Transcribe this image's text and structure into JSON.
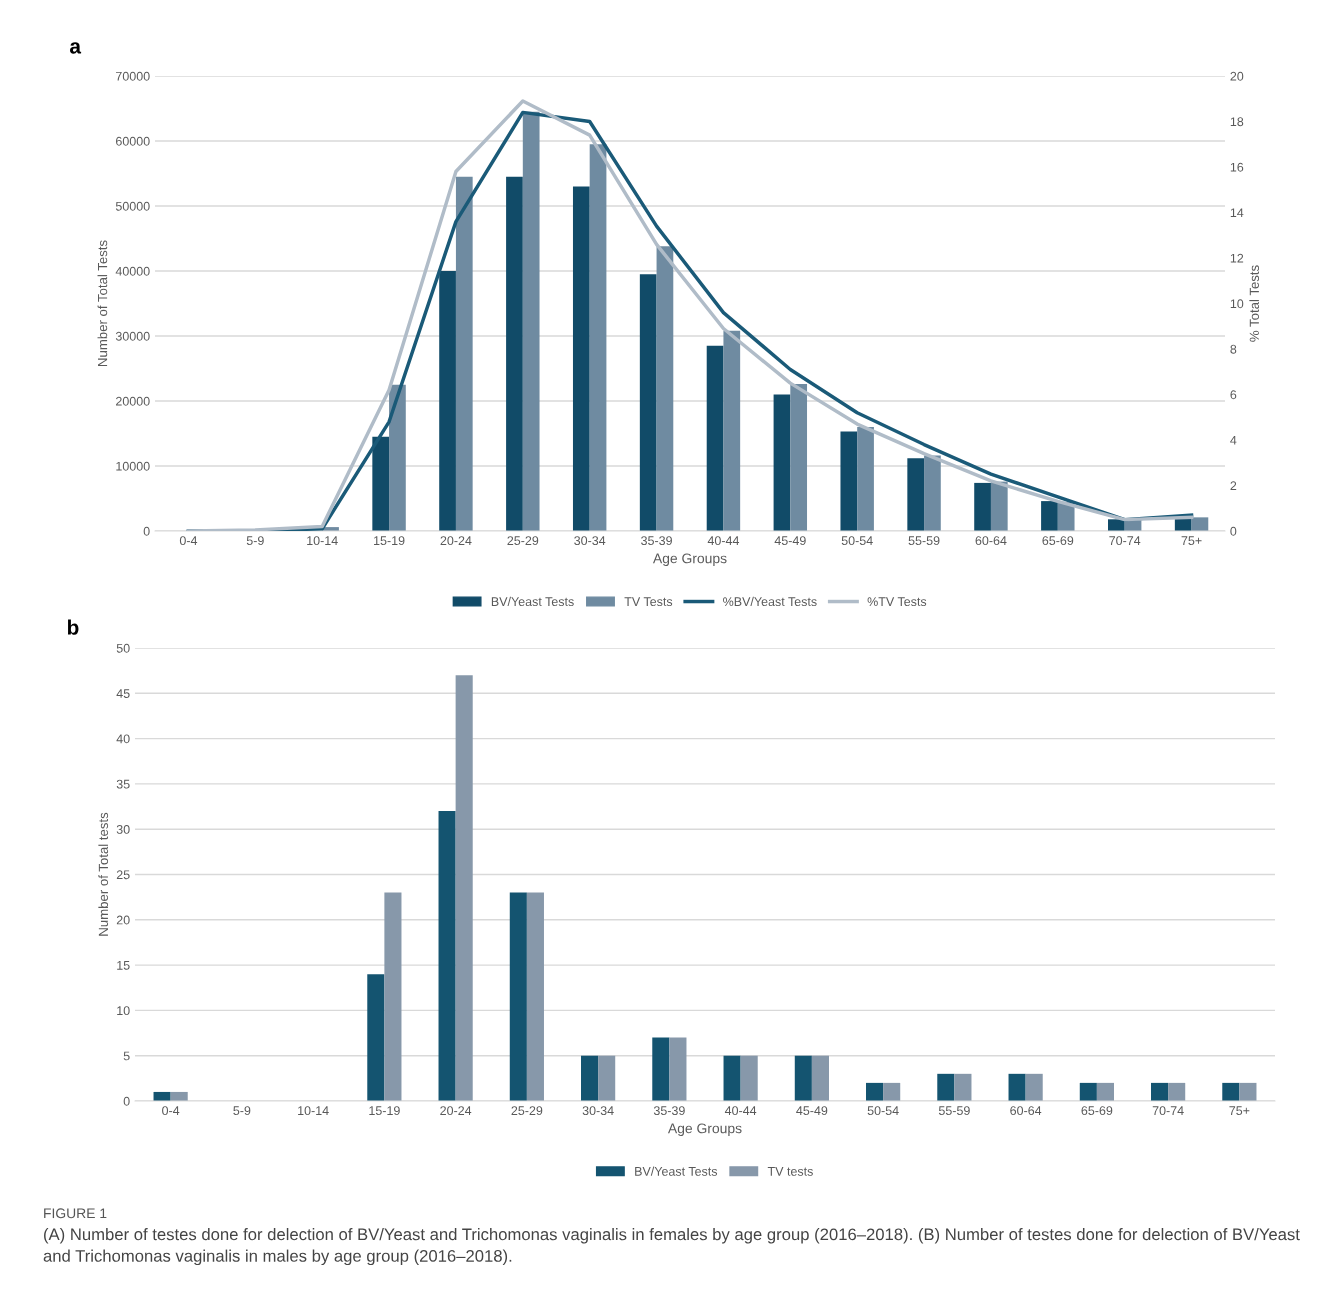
{
  "chart_data": [
    {
      "type": "bar",
      "title": "a",
      "xlabel": "Age Groups",
      "ylabel": "Number of Total Tests",
      "y2label": "% Total Tests",
      "categories": [
        "0-4",
        "5-9",
        "10-14",
        "15-19",
        "20-24",
        "25-29",
        "30-34",
        "35-39",
        "40-44",
        "45-49",
        "50-54",
        "55-59",
        "60-64",
        "65-69",
        "70-74",
        "75+"
      ],
      "series": [
        {
          "name": "BV/Yeast Tests",
          "color": "#114b68",
          "values": [
            null,
            100,
            null,
            14500,
            40000,
            54500,
            53000,
            39500,
            28500,
            21000,
            15300,
            11200,
            7400,
            4600,
            1800,
            2000
          ]
        },
        {
          "name": "TV Tests",
          "color": "#6f8ba1",
          "values": [
            100,
            100,
            600,
            22500,
            54500,
            64500,
            59500,
            43800,
            30800,
            22600,
            16000,
            11600,
            7600,
            4500,
            1800,
            2100
          ]
        },
        {
          "name": "%BV/Yeast Tests",
          "type": "line",
          "axis": "y2",
          "color": "#1a5a78",
          "values": [
            0,
            0,
            0.1,
            4.8,
            13.6,
            18.4,
            18.0,
            13.4,
            9.6,
            7.1,
            5.2,
            3.8,
            2.5,
            1.5,
            0.5,
            0.7
          ]
        },
        {
          "name": "%TV Tests",
          "type": "line",
          "axis": "y2",
          "color": "#b0bcc8",
          "values": [
            0,
            0.05,
            0.2,
            6.2,
            15.8,
            18.9,
            17.4,
            12.6,
            8.9,
            6.5,
            4.7,
            3.4,
            2.2,
            1.3,
            0.5,
            0.6
          ]
        }
      ],
      "ylim": [
        0,
        70000
      ],
      "yticks": [
        0,
        10000,
        20000,
        30000,
        40000,
        50000,
        60000,
        70000
      ],
      "y2lim": [
        0,
        20
      ],
      "y2ticks": [
        0,
        2,
        4,
        6,
        8,
        10,
        12,
        14,
        16,
        18,
        20
      ],
      "grid": "y",
      "legend": "bottom"
    },
    {
      "type": "bar",
      "title": "b",
      "xlabel": "Age Groups",
      "ylabel": "Number of Total tests",
      "categories": [
        "0-4",
        "5-9",
        "10-14",
        "15-19",
        "20-24",
        "25-29",
        "30-34",
        "35-39",
        "40-44",
        "45-49",
        "50-54",
        "55-59",
        "60-64",
        "65-69",
        "70-74",
        "75+"
      ],
      "series": [
        {
          "name": "BV/Yeast Tests",
          "color": "#145470",
          "values": [
            1,
            0,
            0,
            14,
            32,
            23,
            5,
            7,
            5,
            5,
            2,
            3,
            3,
            2,
            2,
            2
          ]
        },
        {
          "name": "TV tests",
          "color": "#8798aa",
          "values": [
            1,
            0,
            0,
            23,
            47,
            23,
            5,
            7,
            5,
            5,
            2,
            3,
            3,
            2,
            2,
            2
          ]
        }
      ],
      "ylim": [
        0,
        50
      ],
      "yticks": [
        0,
        5,
        10,
        15,
        20,
        25,
        30,
        35,
        40,
        45,
        50
      ],
      "grid": "y",
      "legend": "bottom",
      "annotations": [
        "FIGURE 1",
        "(A) Number of testes done for delection of BV/Yeast and Trichomonas vaginalis in females by age group (2016–2018). (B) Number of testes done for delection of BV/Yeast and Trichomonas vaginalis in males by age group (2016–2018)."
      ]
    }
  ]
}
